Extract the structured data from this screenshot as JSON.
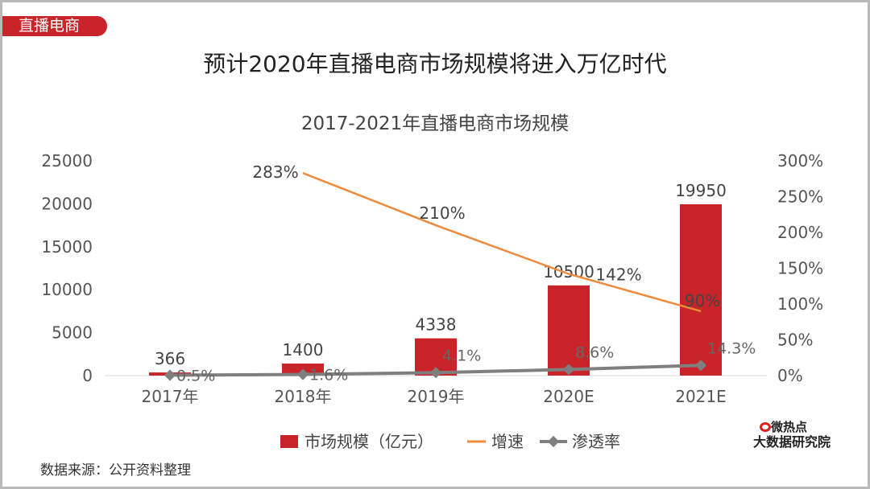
{
  "tag": "直播电商",
  "title": "预计2020年直播电商市场规模将进入万亿时代",
  "source": "数据来源：公开资料整理",
  "logo": {
    "line1": "微热点",
    "line2": "大数据研究院"
  },
  "chart_data": {
    "type": "bar",
    "title": "2017-2021年直播电商市场规模",
    "categories": [
      "2017年",
      "2018年",
      "2019年",
      "2020E",
      "2021E"
    ],
    "ylim": [
      0,
      25000
    ],
    "y_ticks": [
      "0",
      "5000",
      "10000",
      "15000",
      "20000",
      "25000"
    ],
    "y2lim": [
      0,
      300
    ],
    "y2_ticks": [
      "0%",
      "50%",
      "100%",
      "150%",
      "200%",
      "250%",
      "300%"
    ],
    "legend_position": "bottom",
    "series": [
      {
        "name": "市场规模（亿元）",
        "kind": "bar",
        "axis": "left",
        "color": "#c8242a",
        "values": [
          366,
          1400,
          4338,
          10500,
          19950
        ],
        "labels": [
          "366",
          "1400",
          "4338",
          "10500",
          "19950"
        ]
      },
      {
        "name": "增速",
        "kind": "line",
        "axis": "right",
        "color": "#ed8a3b",
        "values": [
          null,
          283,
          210,
          142,
          90
        ],
        "labels": [
          "",
          "283%",
          "210%",
          "142%",
          "90%"
        ]
      },
      {
        "name": "渗透率",
        "kind": "line-marker",
        "axis": "right",
        "color": "#7f7f7f",
        "values": [
          0.5,
          1.6,
          4.1,
          8.6,
          14.3
        ],
        "labels": [
          "0.5%",
          "1.6%",
          "4.1%",
          "8.6%",
          "14.3%"
        ]
      }
    ]
  }
}
